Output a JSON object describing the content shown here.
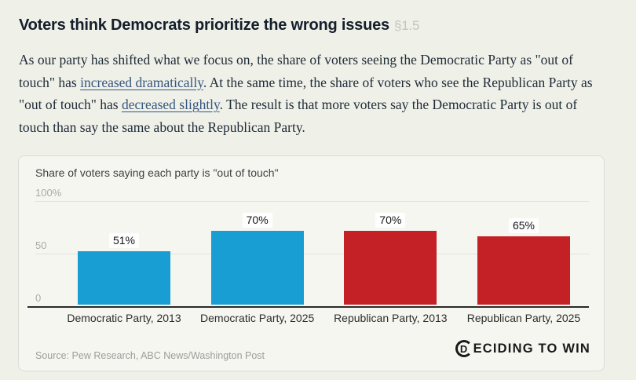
{
  "page": {
    "heading": "Voters think Democrats prioritize the wrong issues",
    "section_ref": "§1.5",
    "paragraph": {
      "part1": "As our party has shifted what we focus on, the share of voters seeing the Democratic Party as \"out of touch\" has ",
      "link1": "increased dramatically",
      "part2": ". At the same time, the share of voters who see the Republican Party as \"out of touch\" has ",
      "link2": "decreased slightly",
      "part3": ". The result is that more voters say the Democratic Party is out of touch than say the same about the Republican Party."
    }
  },
  "chart_card": {
    "logo_d": "D",
    "logo_rest": "ECIDING TO WIN"
  },
  "chart_data": {
    "type": "bar",
    "title": "Share of voters saying each party is \"out of touch\"",
    "categories": [
      "Democratic Party, 2013",
      "Democratic Party, 2025",
      "Republican Party, 2013",
      "Republican Party, 2025"
    ],
    "values": [
      51,
      70,
      70,
      65
    ],
    "value_labels": [
      "51%",
      "70%",
      "70%",
      "65%"
    ],
    "colors": [
      "#189ED2",
      "#189ED2",
      "#C42127",
      "#C42127"
    ],
    "color_legend": {
      "democrat_blue": "#189ED2",
      "republican_red": "#C42127"
    },
    "xlabel": "",
    "ylabel": "",
    "ylim": [
      0,
      100
    ],
    "yticks": [
      {
        "value": 100,
        "label": "100%"
      },
      {
        "value": 50,
        "label": "50"
      },
      {
        "value": 0,
        "label": "0"
      }
    ],
    "grid": true,
    "legend": "none",
    "source": "Source: Pew Research, ABC News/Washington Post"
  }
}
